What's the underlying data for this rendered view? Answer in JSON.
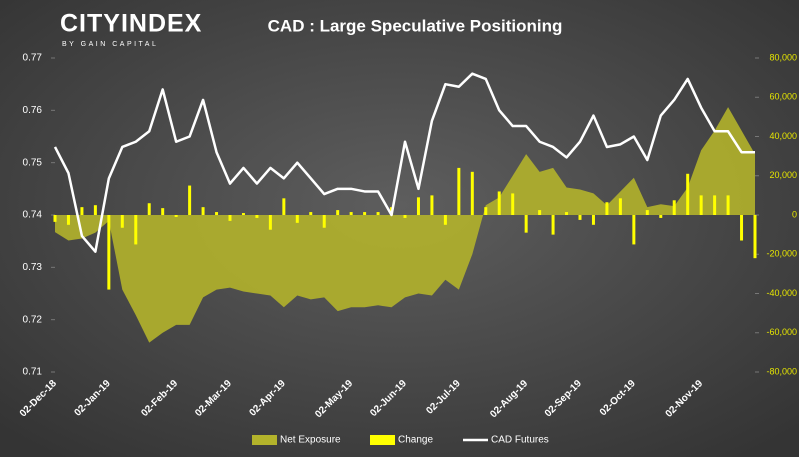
{
  "chart_data": {
    "type": "combo",
    "logo": "CITYINDEX",
    "logo_subtitle": "BY GAIN CAPITAL",
    "title": "CAD : Large Speculative Positioning",
    "categories": [
      "02-Dec-18",
      null,
      null,
      null,
      "02-Jan-19",
      null,
      null,
      null,
      null,
      "02-Feb-19",
      null,
      null,
      null,
      "02-Mar-19",
      null,
      null,
      null,
      "02-Apr-19",
      null,
      null,
      null,
      null,
      "02-May-19",
      null,
      null,
      null,
      "02-Jun-19",
      null,
      null,
      null,
      "02-Jul-19",
      null,
      null,
      null,
      null,
      "02-Aug-19",
      null,
      null,
      null,
      "02-Sep-19",
      null,
      null,
      null,
      "02-Oct-19",
      null,
      null,
      null,
      null,
      "02-Nov-19",
      null,
      null,
      null,
      null
    ],
    "series": [
      {
        "name": "Net Exposure",
        "kind": "area",
        "axis": "y2",
        "color": "#b3b32b",
        "values": [
          -8700,
          -13000,
          -12000,
          -9000,
          -3000,
          -38000,
          -51000,
          -65000,
          -60000,
          -56000,
          -56000,
          -42000,
          -38000,
          -37000,
          -39000,
          -40000,
          -41000,
          -47000,
          -41000,
          -43000,
          -42000,
          -49000,
          -47000,
          -47000,
          -46000,
          -47000,
          -42000,
          -40000,
          -41000,
          -33000,
          -38000,
          -20000,
          5000,
          9000,
          20000,
          31000,
          22000,
          24000,
          14000,
          13000,
          11000,
          5000,
          12000,
          19000,
          4000,
          5500,
          4500,
          14000,
          33000,
          43000,
          55000,
          43000,
          31000
        ]
      },
      {
        "name": "Change",
        "kind": "bar",
        "axis": "y2",
        "color": "#ffff00",
        "values": [
          -3500,
          -5000,
          4000,
          5000,
          -38000,
          -6500,
          -15000,
          6000,
          3500,
          -1000,
          15000,
          4000,
          1500,
          -3000,
          1000,
          -1500,
          -7500,
          8500,
          -4000,
          1500,
          -6500,
          2500,
          1500,
          1500,
          1500,
          4000,
          -1500,
          9000,
          10000,
          -5000,
          24000,
          22000,
          4000,
          12000,
          11000,
          -9000,
          2500,
          -10000,
          1500,
          -2500,
          -5000,
          6500,
          8500,
          -15000,
          2500,
          -1500,
          7500,
          21000,
          10000,
          10000,
          10000,
          -13000,
          -22000
        ]
      },
      {
        "name": "CAD Futures",
        "kind": "line",
        "color": "#ffffff",
        "values": [
          0.753,
          0.748,
          0.736,
          0.733,
          0.747,
          0.753,
          0.754,
          0.756,
          0.764,
          0.754,
          0.755,
          0.762,
          0.752,
          0.746,
          0.749,
          0.746,
          0.749,
          0.747,
          0.75,
          0.747,
          0.744,
          0.745,
          0.745,
          0.7445,
          0.7445,
          0.74,
          0.754,
          0.745,
          0.758,
          0.765,
          0.7645,
          0.767,
          0.766,
          0.76,
          0.757,
          0.757,
          0.754,
          0.753,
          0.751,
          0.754,
          0.759,
          0.753,
          0.7535,
          0.755,
          0.7505,
          0.759,
          0.762,
          0.766,
          0.7605,
          0.756,
          0.756,
          0.752,
          0.752
        ]
      }
    ],
    "ylim": [
      0.71,
      0.77
    ],
    "yticks": [
      0.71,
      0.72,
      0.73,
      0.74,
      0.75,
      0.76,
      0.77
    ],
    "y2lim": [
      -80000,
      80000
    ],
    "y2ticks": [
      {
        "value": -80000,
        "label": "-80,000"
      },
      {
        "value": -60000,
        "label": "-60,000"
      },
      {
        "value": -40000,
        "label": "-40,000"
      },
      {
        "value": -20000,
        "label": "-20,000"
      },
      0,
      {
        "value": 20000,
        "label": "20,000"
      },
      {
        "value": 40000,
        "label": "40,000"
      },
      {
        "value": 60000,
        "label": "60,000"
      },
      {
        "value": 80000,
        "label": "80,000"
      }
    ],
    "grid": false,
    "legend": "bottom"
  }
}
